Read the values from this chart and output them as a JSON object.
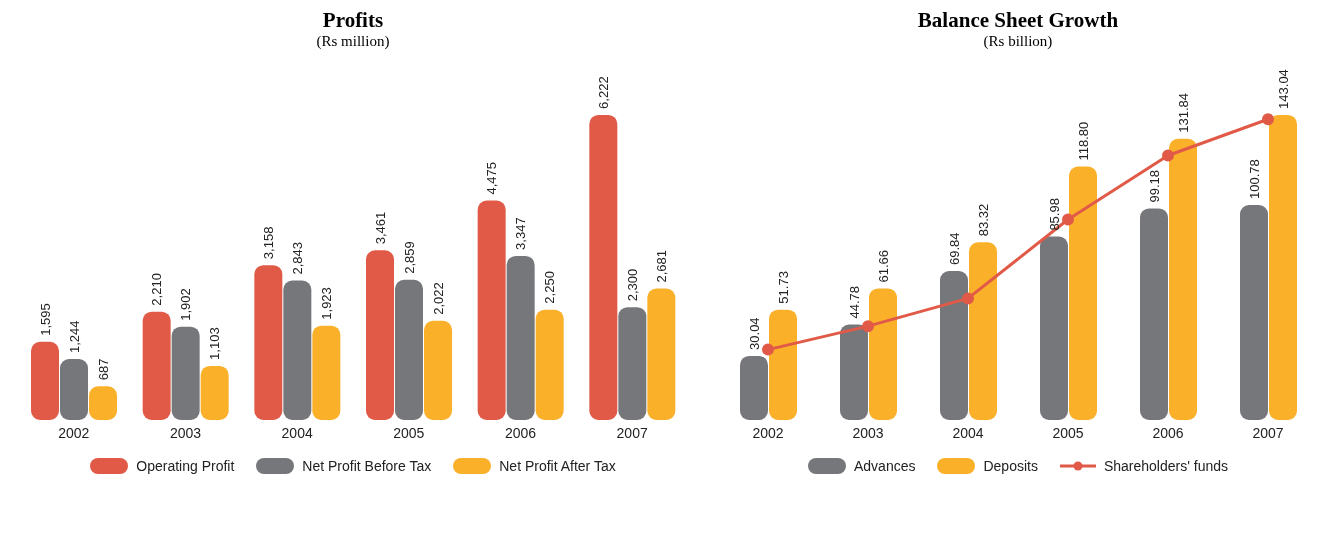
{
  "chart_data": [
    {
      "type": "bar",
      "title": "Profits",
      "subtitle": "(Rs million)",
      "categories": [
        "2002",
        "2003",
        "2004",
        "2005",
        "2006",
        "2007"
      ],
      "legend": "bottom",
      "series": [
        {
          "name": "Operating Profit",
          "color": "#e05a47",
          "values": [
            1595,
            2210,
            3158,
            3461,
            4475,
            6222
          ],
          "value_labels": [
            "1,595",
            "2,210",
            "3,158",
            "3,461",
            "4,475",
            "6,222"
          ]
        },
        {
          "name": "Net Profit Before Tax",
          "color": "#76777b",
          "values": [
            1244,
            1902,
            2843,
            2859,
            3347,
            2300
          ],
          "value_labels": [
            "1,244",
            "1,902",
            "2,843",
            "2,859",
            "3,347",
            "2,300"
          ]
        },
        {
          "name": "Net Profit After Tax",
          "color": "#fbb02a",
          "values": [
            687,
            1103,
            1923,
            2022,
            2250,
            2681
          ],
          "value_labels": [
            "687",
            "1,103",
            "1,923",
            "2,022",
            "2,250",
            "2,681"
          ]
        }
      ]
    },
    {
      "type": "bar",
      "title": "Balance Sheet Growth",
      "subtitle": "(Rs billion)",
      "categories": [
        "2002",
        "2003",
        "2004",
        "2005",
        "2006",
        "2007"
      ],
      "legend": "bottom",
      "series": [
        {
          "name": "Advances",
          "color": "#76777b",
          "values": [
            30.04,
            44.78,
            69.84,
            85.98,
            99.18,
            100.78
          ],
          "value_labels": [
            "30.04",
            "44.78",
            "69.84",
            "85.98",
            "99.18",
            "100.78"
          ]
        },
        {
          "name": "Deposits",
          "color": "#fbb02a",
          "values": [
            51.73,
            61.66,
            83.32,
            118.8,
            131.84,
            143.04
          ],
          "value_labels": [
            "51.73",
            "61.66",
            "83.32",
            "118.80",
            "131.84",
            "143.04"
          ]
        },
        {
          "name": "Shareholders' funds",
          "type": "line",
          "marker": "circle",
          "color": "#e05a47",
          "values": [
            33,
            44,
            57,
            94,
            124,
            141
          ]
        }
      ]
    }
  ]
}
